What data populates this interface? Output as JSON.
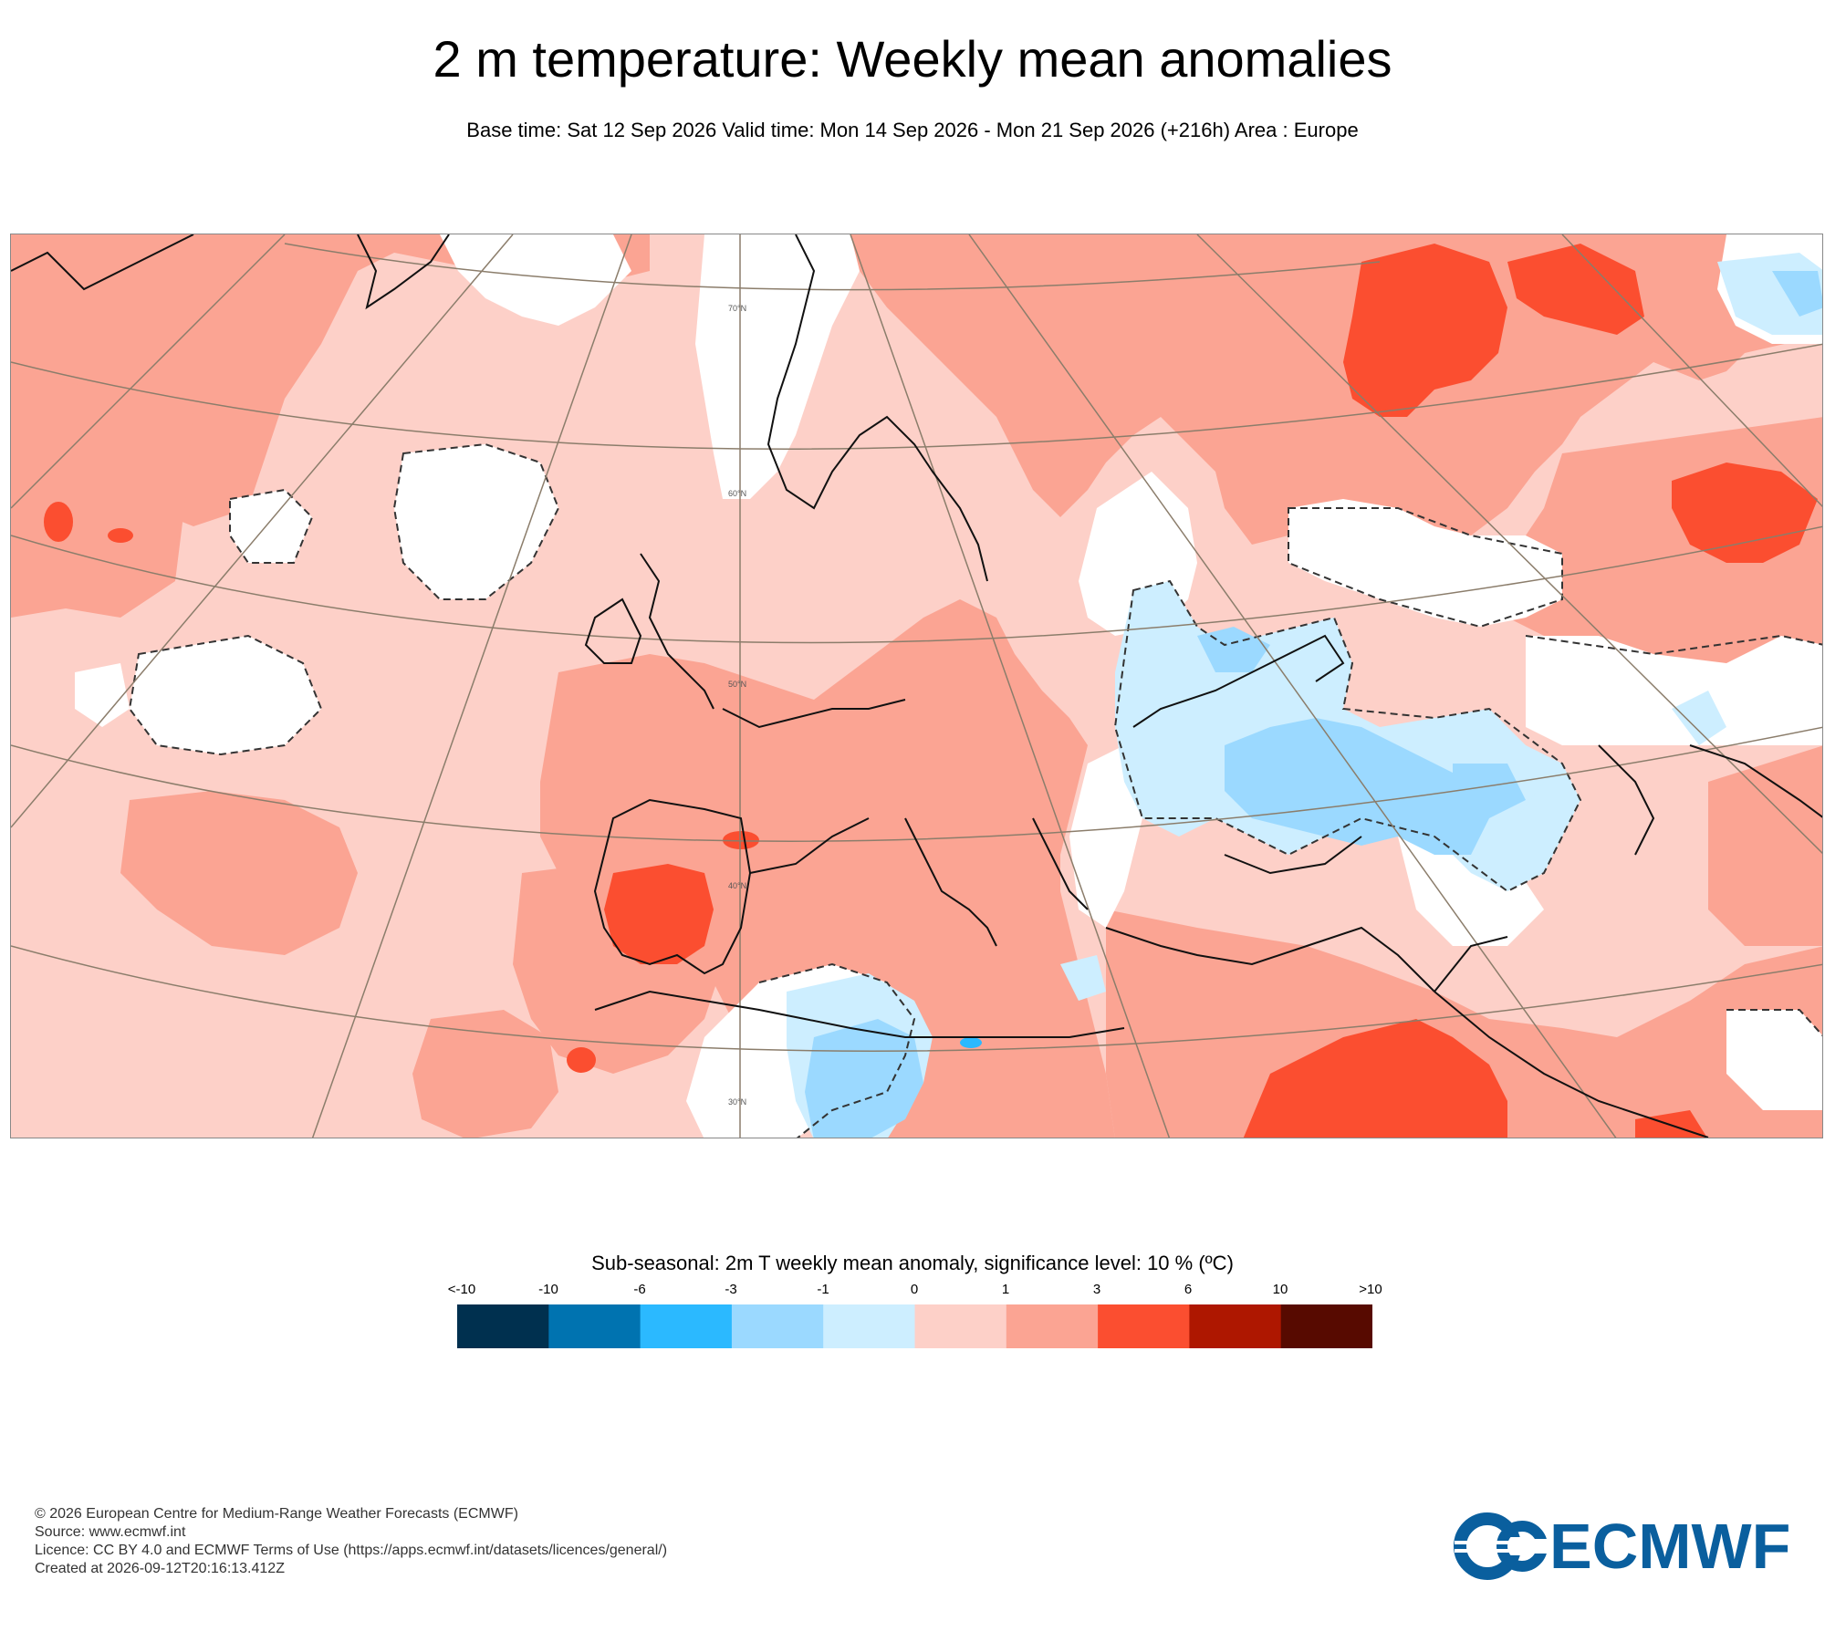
{
  "header": {
    "title": "2 m temperature: Weekly mean anomalies",
    "subtitle": "Base time: Sat 12 Sep 2026 Valid time: Mon 14 Sep 2026 - Mon 21 Sep 2026 (+216h) Area : Europe"
  },
  "map": {
    "latitude_labels": [
      "70°N",
      "60°N",
      "50°N",
      "40°N",
      "30°N"
    ]
  },
  "colorbar": {
    "title": "Sub-seasonal: 2m T weekly mean anomaly, significance level: 10 % (ºC)",
    "labels": [
      "<-10",
      "-10",
      "-6",
      "-3",
      "-1",
      "0",
      "1",
      "3",
      "6",
      "10",
      ">10"
    ],
    "colors": [
      "#00304f",
      "#0073b0",
      "#2bb9ff",
      "#9bd9ff",
      "#cdeeff",
      "#fdd0c8",
      "#fba493",
      "#fb4e30",
      "#ae1700",
      "#570a00"
    ]
  },
  "footer": {
    "copyright": "© 2026 European Centre for Medium-Range Weather Forecasts (ECMWF)",
    "source": "Source: www.ecmwf.int",
    "licence": "Licence: CC BY 4.0 and ECMWF Terms of Use (https://apps.ecmwf.int/datasets/licences/general/)",
    "created": "Created at 2026-09-12T20:16:13.412Z"
  },
  "logo": {
    "text": "ECMWF",
    "color": "#0a5f9e"
  }
}
